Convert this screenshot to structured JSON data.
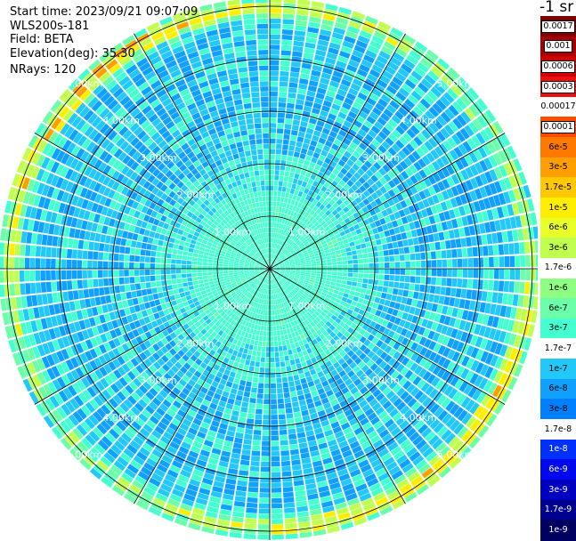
{
  "info": {
    "start_time": "Start time: 2023/09/21 09:07:09",
    "instrument": "WLS200s-181",
    "field": "Field: BETA",
    "elevation": "Elevation(deg): 35.30",
    "nrays": "NRays: 120"
  },
  "units": "-1 sr",
  "range_rings": [
    {
      "label": "1.00km",
      "range_km": 1
    },
    {
      "label": "2.00km",
      "range_km": 2
    },
    {
      "label": "3.00km",
      "range_km": 3
    },
    {
      "label": "4.00km",
      "range_km": 4
    },
    {
      "label": "5.00km",
      "range_km": 5
    }
  ],
  "colorbar": [
    {
      "label": "0.0017",
      "color": "#7f0000",
      "style": "boxed"
    },
    {
      "label": "0.001",
      "color": "#a80000",
      "style": "boxed"
    },
    {
      "label": "0.0006",
      "color": "#cc0000",
      "style": "boxed"
    },
    {
      "label": "0.0003",
      "color": "#ee1010",
      "style": "boxed"
    },
    {
      "label": "0.00017",
      "color": "#ffffff",
      "style": "plain"
    },
    {
      "label": "0.0001",
      "color": "#ff4a00",
      "style": "boxed"
    },
    {
      "label": "6e-5",
      "color": "#ff7800",
      "style": "plain"
    },
    {
      "label": "3e-5",
      "color": "#ffa000",
      "style": "plain"
    },
    {
      "label": "1.7e-5",
      "color": "#ffc800",
      "style": "plain"
    },
    {
      "label": "1e-5",
      "color": "#ffee00",
      "style": "plain"
    },
    {
      "label": "6e-6",
      "color": "#e8ff2a",
      "style": "plain"
    },
    {
      "label": "3e-6",
      "color": "#c0ff50",
      "style": "plain"
    },
    {
      "label": "1.7e-6",
      "color": "#ffffff",
      "style": "plain"
    },
    {
      "label": "1e-6",
      "color": "#8eff80",
      "style": "plain"
    },
    {
      "label": "6e-7",
      "color": "#6affa8",
      "style": "plain"
    },
    {
      "label": "3e-7",
      "color": "#44ffd0",
      "style": "plain"
    },
    {
      "label": "1.7e-7",
      "color": "#ffffff",
      "style": "plain"
    },
    {
      "label": "1e-7",
      "color": "#22c8f8",
      "style": "plain"
    },
    {
      "label": "6e-8",
      "color": "#10a0ff",
      "style": "plain"
    },
    {
      "label": "3e-8",
      "color": "#0080ff",
      "style": "plain"
    },
    {
      "label": "1.7e-8",
      "color": "#ffffff",
      "style": "plain"
    },
    {
      "label": "1e-8",
      "color": "#0030ff",
      "style": "white"
    },
    {
      "label": "6e-9",
      "color": "#0008ee",
      "style": "white"
    },
    {
      "label": "3e-9",
      "color": "#0000c0",
      "style": "white"
    },
    {
      "label": "1.7e-9",
      "color": "#000090",
      "style": "white"
    },
    {
      "label": "1e-9",
      "color": "#000060",
      "style": "white"
    }
  ]
}
